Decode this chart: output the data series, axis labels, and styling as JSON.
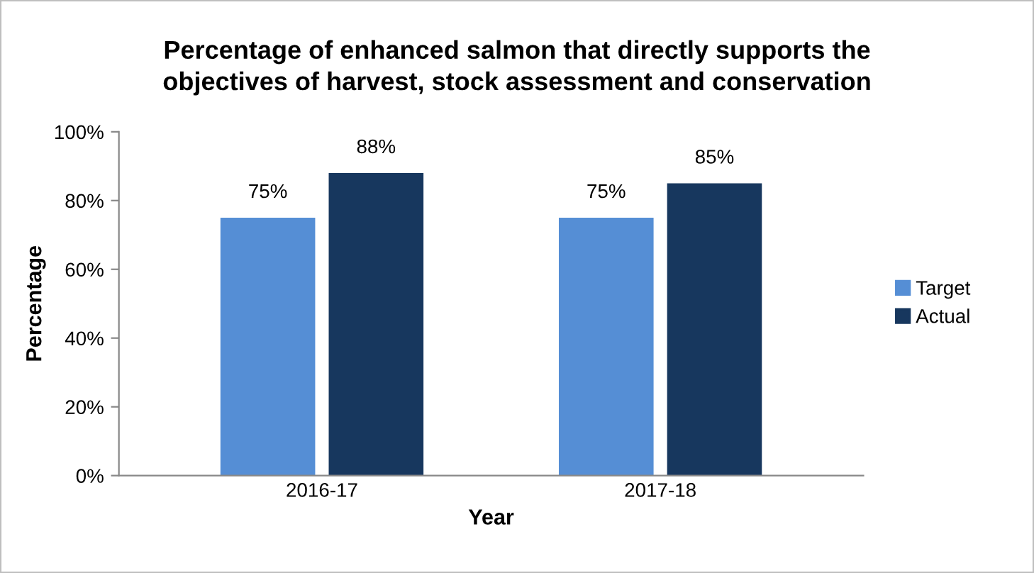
{
  "chart_data": {
    "type": "bar",
    "title": "Percentage of enhanced salmon that directly supports the\nobjectives of harvest, stock assessment and conservation",
    "xlabel": "Year",
    "ylabel": "Percentage",
    "categories": [
      "2016-17",
      "2017-18"
    ],
    "series": [
      {
        "name": "Target",
        "color": "#558ed5",
        "values": [
          75,
          75
        ],
        "value_labels": [
          "75%",
          "75%"
        ]
      },
      {
        "name": "Actual",
        "color": "#17375e",
        "values": [
          88,
          85
        ],
        "value_labels": [
          "88%",
          "85%"
        ]
      }
    ],
    "ylim": [
      0,
      100
    ],
    "yticks": [
      {
        "value": 0,
        "label": "0%"
      },
      {
        "value": 20,
        "label": "20%"
      },
      {
        "value": 40,
        "label": "40%"
      },
      {
        "value": 60,
        "label": "60%"
      },
      {
        "value": 80,
        "label": "80%"
      },
      {
        "value": 100,
        "label": "100%"
      }
    ],
    "grid": false,
    "legend": "right"
  }
}
